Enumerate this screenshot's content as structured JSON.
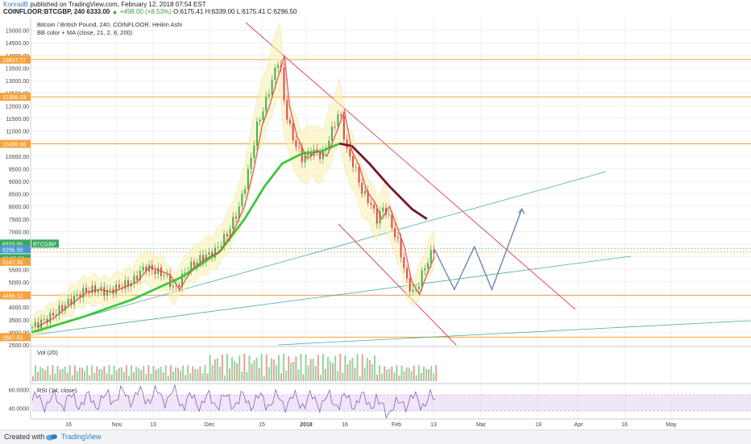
{
  "header": {
    "author": "KonradB",
    "published": "published on TradingView.com, February 12, 2018 07:54 EST",
    "ticker_line": "COINFLOOR:BTCGBP, 240 6333.00",
    "change": "▲ +498.00 (+8.53%)",
    "ohlc": "O:6175.41 H:6339.00 L:6175.41 C:6296.50"
  },
  "chart_data": {
    "type": "line",
    "title": "Bitcoin / British Pound, 240, COINFLOOR, Heikin Ashi",
    "subtitle": "BB color + MA (close, 21, 2, 8, 200)",
    "ylim": [
      2500,
      15500
    ],
    "yticks": [
      15000,
      14500,
      14000,
      13500,
      13000,
      12500,
      12000,
      11500,
      11000,
      10500,
      10000,
      9500,
      9000,
      8500,
      8000,
      7500,
      7000,
      6500,
      6000,
      5500,
      5000,
      4500,
      4000,
      3500,
      3000,
      2500
    ],
    "ytick_labels": [
      "15000.00",
      "14500.00",
      "14000.00",
      "13500.00",
      "13000.00",
      "12500.00",
      "12000.00",
      "11500.00",
      "11000.00",
      "10500.00",
      "10000.00",
      "9500.00",
      "9000.00",
      "8500.00",
      "8000.00",
      "7500.00",
      "7000.00",
      "6500.00",
      "6000.00",
      "5500.00",
      "5000.00",
      "4500.00",
      "4000.00",
      "3500.00",
      "3000.00",
      "2500.00"
    ],
    "xtick_labels": [
      "16",
      "Nov",
      "13",
      "Dec",
      "15",
      "2018",
      "16",
      "Feb",
      "13",
      "Mar",
      "19",
      "Apr",
      "16",
      "May"
    ],
    "horizontal_levels": [
      {
        "value": 13837.77,
        "label": "13837.77"
      },
      {
        "value": 12356.03,
        "label": "12356.03"
      },
      {
        "value": 10486.98,
        "label": "10486.98"
      },
      {
        "value": 4466.12,
        "label": "4466.12"
      },
      {
        "value": 2807.53,
        "label": "2807.53"
      }
    ],
    "price_tags": [
      {
        "value": 6333.0,
        "label": "6333.00",
        "name": "BTCGBP"
      },
      {
        "value": 6296.5,
        "label": "6296.50"
      },
      {
        "value": 6140,
        "label": "03:05:58"
      },
      {
        "value": 6187.38,
        "label": "6187.38"
      }
    ],
    "price_series": [
      {
        "t": 0,
        "v": 3200
      },
      {
        "t": 7,
        "v": 3600
      },
      {
        "t": 12,
        "v": 4000
      },
      {
        "t": 20,
        "v": 4600
      },
      {
        "t": 25,
        "v": 4700
      },
      {
        "t": 30,
        "v": 4600
      },
      {
        "t": 40,
        "v": 5000
      },
      {
        "t": 45,
        "v": 5600
      },
      {
        "t": 53,
        "v": 5300
      },
      {
        "t": 57,
        "v": 4700
      },
      {
        "t": 62,
        "v": 5500
      },
      {
        "t": 67,
        "v": 5900
      },
      {
        "t": 73,
        "v": 6200
      },
      {
        "t": 78,
        "v": 6900
      },
      {
        "t": 83,
        "v": 8000
      },
      {
        "t": 87,
        "v": 9600
      },
      {
        "t": 90,
        "v": 11200
      },
      {
        "t": 93,
        "v": 12000
      },
      {
        "t": 96,
        "v": 13000
      },
      {
        "t": 99,
        "v": 14000
      },
      {
        "t": 101,
        "v": 12000
      },
      {
        "t": 104,
        "v": 10800
      },
      {
        "t": 108,
        "v": 9900
      },
      {
        "t": 112,
        "v": 10200
      },
      {
        "t": 116,
        "v": 10000
      },
      {
        "t": 120,
        "v": 11000
      },
      {
        "t": 123,
        "v": 11800
      },
      {
        "t": 126,
        "v": 10200
      },
      {
        "t": 129,
        "v": 9600
      },
      {
        "t": 132,
        "v": 8600
      },
      {
        "t": 135,
        "v": 8200
      },
      {
        "t": 138,
        "v": 7500
      },
      {
        "t": 141,
        "v": 8000
      },
      {
        "t": 144,
        "v": 7200
      },
      {
        "t": 147,
        "v": 6400
      },
      {
        "t": 150,
        "v": 5000
      },
      {
        "t": 153,
        "v": 4500
      },
      {
        "t": 156,
        "v": 5300
      },
      {
        "t": 159,
        "v": 6000
      },
      {
        "t": 161,
        "v": 6300
      }
    ],
    "ma200_series": [
      {
        "t": 0,
        "v": 3000
      },
      {
        "t": 20,
        "v": 3600
      },
      {
        "t": 40,
        "v": 4300
      },
      {
        "t": 60,
        "v": 5200
      },
      {
        "t": 75,
        "v": 6200
      },
      {
        "t": 85,
        "v": 7500
      },
      {
        "t": 93,
        "v": 8800
      },
      {
        "t": 100,
        "v": 9700
      },
      {
        "t": 108,
        "v": 10100
      },
      {
        "t": 116,
        "v": 10200
      },
      {
        "t": 123,
        "v": 10500
      },
      {
        "t": 128,
        "v": 10400
      },
      {
        "t": 135,
        "v": 9700
      },
      {
        "t": 143,
        "v": 8800
      },
      {
        "t": 152,
        "v": 7900
      },
      {
        "t": 158,
        "v": 7500
      }
    ],
    "forecast_path": [
      {
        "t": 161,
        "v": 6300
      },
      {
        "t": 169,
        "v": 4700
      },
      {
        "t": 177,
        "v": 6400
      },
      {
        "t": 184,
        "v": 4700
      },
      {
        "t": 196,
        "v": 7900
      }
    ],
    "volume_panel": {
      "label": "Vol (20)"
    },
    "rsi_panel": {
      "label": "RSI (14, close)",
      "ylim": [
        30,
        65
      ],
      "yticks": [
        60,
        40
      ],
      "ytick_labels": [
        "60.0000",
        "40.0000"
      ],
      "band": [
        30,
        70
      ]
    }
  },
  "footer": {
    "created_with": "Created with",
    "brand": "TradingView"
  },
  "colors": {
    "bull": "#3db34a",
    "bear": "#e0484e",
    "ma200": "#3ec93a",
    "ma_dark": "#7b1428",
    "channel": "#d94150",
    "trend": "#4aae9a",
    "forecast": "#6d84b8",
    "level": "#f7a23b",
    "rsi": "#8b5fb0"
  }
}
